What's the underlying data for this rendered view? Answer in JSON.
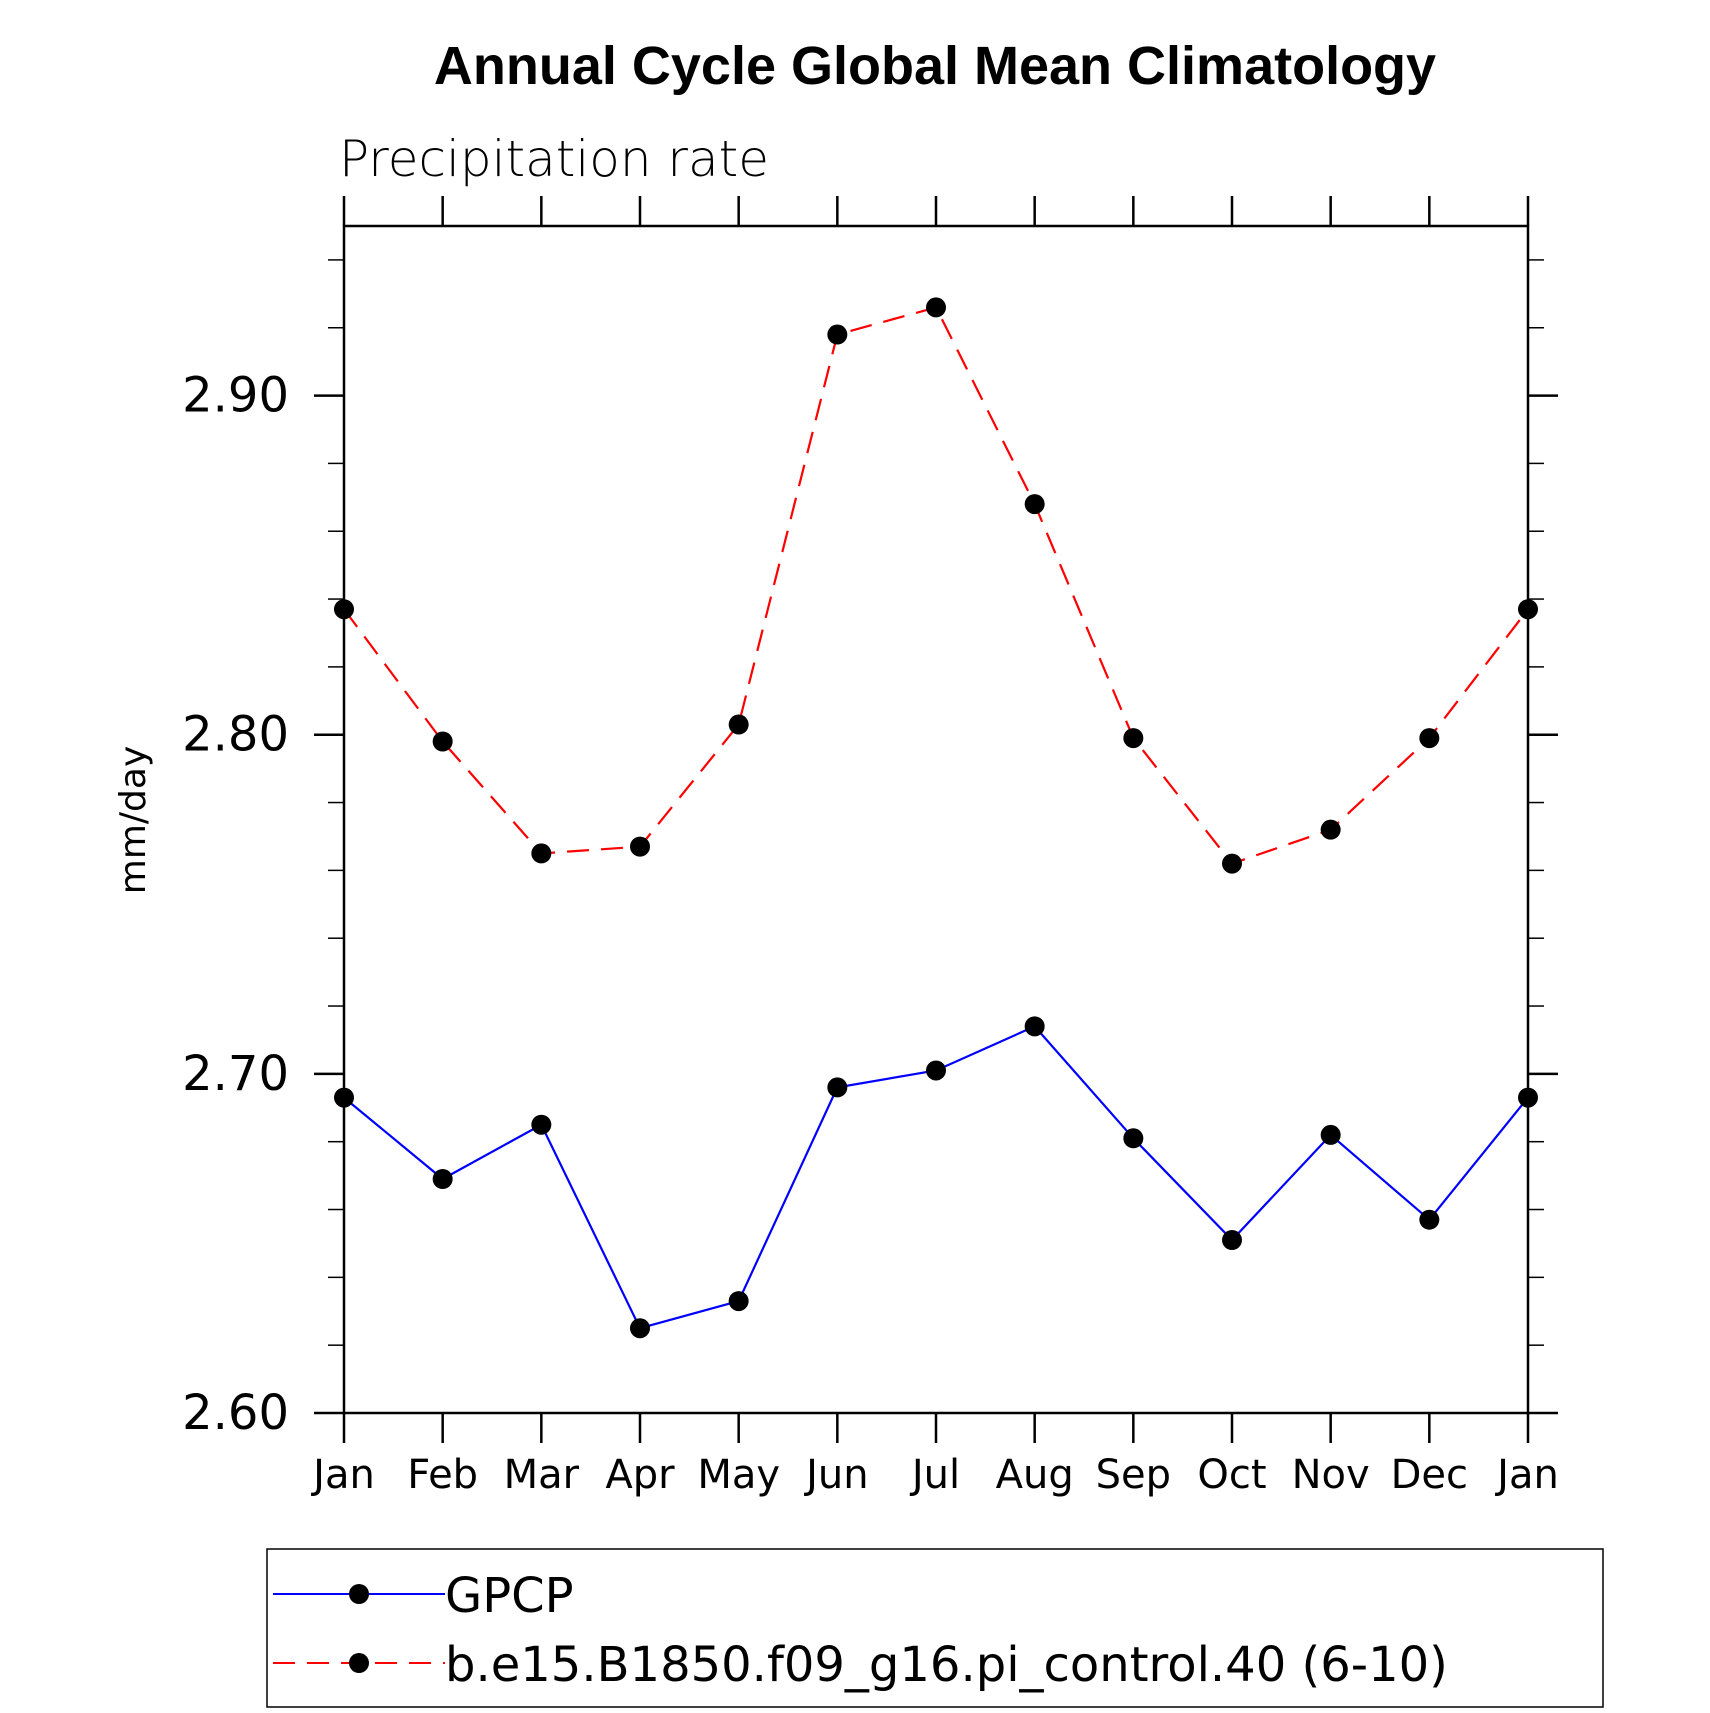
{
  "chart_data": {
    "type": "line",
    "title": "Annual Cycle Global Mean Climatology",
    "subtitle": "Precipitation rate",
    "xlabel": "",
    "ylabel": "mm/day",
    "categories": [
      "Jan",
      "Feb",
      "Mar",
      "Apr",
      "May",
      "Jun",
      "Jul",
      "Aug",
      "Sep",
      "Oct",
      "Nov",
      "Dec",
      "Jan"
    ],
    "ylim": [
      2.6,
      2.95
    ],
    "yticks": [
      "2.60",
      "2.70",
      "2.80",
      "2.90"
    ],
    "series": [
      {
        "name": "GPCP",
        "color": "#0000ff",
        "style": "solid",
        "marker": "filled-circle",
        "values": [
          2.693,
          2.669,
          2.685,
          2.625,
          2.633,
          2.696,
          2.701,
          2.714,
          2.681,
          2.651,
          2.682,
          2.657,
          2.693
        ]
      },
      {
        "name": "b.e15.B1850.f09_g16.pi_control.40 (6-10)",
        "color": "#ff0000",
        "style": "dashed",
        "marker": "filled-circle",
        "values": [
          2.837,
          2.798,
          2.765,
          2.767,
          2.803,
          2.918,
          2.926,
          2.868,
          2.799,
          2.762,
          2.772,
          2.799,
          2.837
        ]
      }
    ],
    "legend": "bottom"
  }
}
